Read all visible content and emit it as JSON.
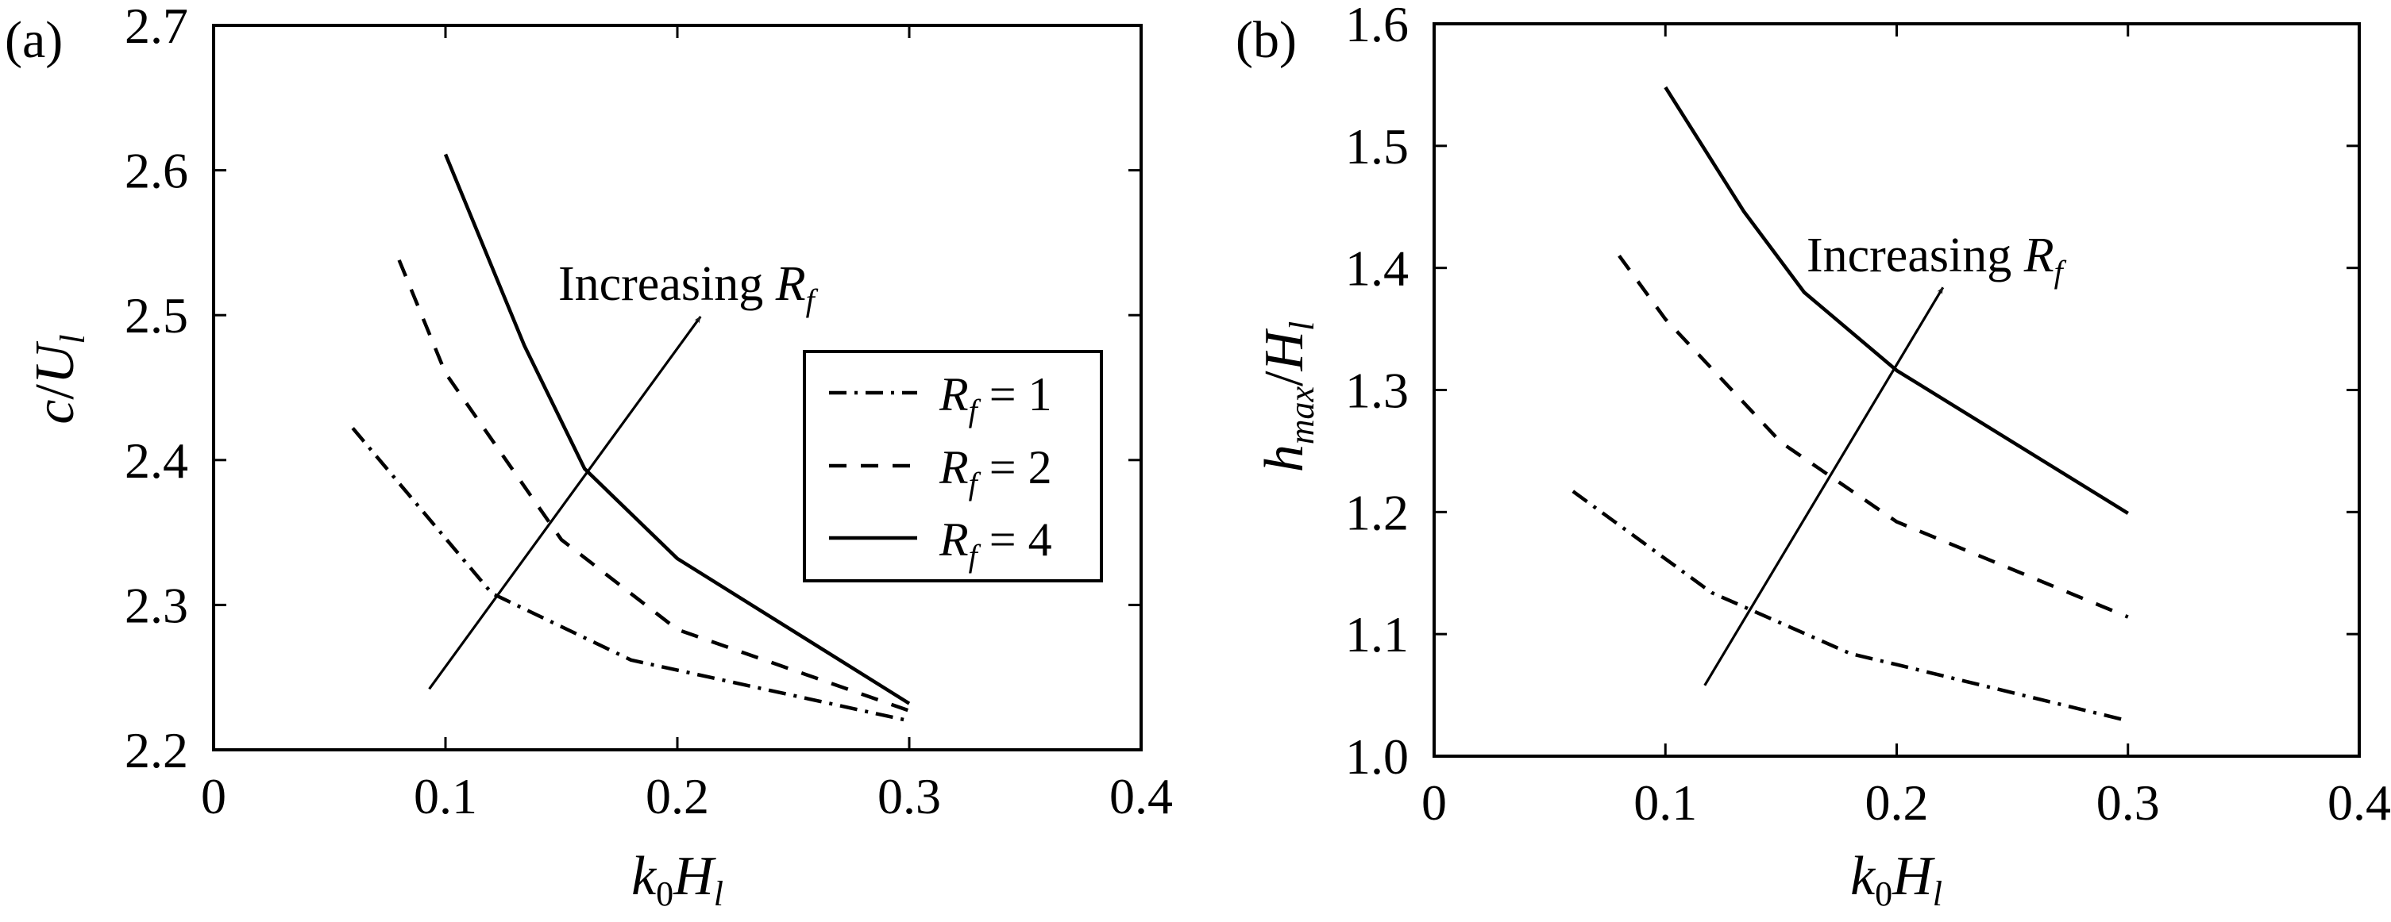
{
  "figure": {
    "panels": [
      {
        "label": "(a)",
        "ylabel_main": "c",
        "ylabel_slash": "/",
        "ylabel_U": "U",
        "ylabel_sub": "l",
        "xlabel_k": "k",
        "xlabel_k_sub": "0",
        "xlabel_H": "H",
        "xlabel_H_sub": "l",
        "annotation": "Increasing ",
        "annotation_R": "R",
        "annotation_sub": "f"
      },
      {
        "label": "(b)",
        "ylabel_main": "h",
        "ylabel_main_sub": "max",
        "ylabel_slash": "/",
        "ylabel_U": "H",
        "ylabel_sub": "l",
        "xlabel_k": "k",
        "xlabel_k_sub": "0",
        "xlabel_H": "H",
        "xlabel_H_sub": "l",
        "annotation": "Increasing ",
        "annotation_R": "R",
        "annotation_sub": "f"
      }
    ],
    "legend": [
      {
        "R": "R",
        "sub": "f",
        "eq": " = ",
        "value": "1",
        "style": "dashdot"
      },
      {
        "R": "R",
        "sub": "f",
        "eq": " = ",
        "value": "2",
        "style": "dashed"
      },
      {
        "R": "R",
        "sub": "f",
        "eq": " = ",
        "value": "4",
        "style": "solid"
      }
    ]
  },
  "chart_data": [
    {
      "type": "line",
      "title": "(a)",
      "xlabel": "k0 Hl",
      "ylabel": "c/Ul",
      "xlim": [
        0,
        0.4
      ],
      "ylim": [
        2.2,
        2.7
      ],
      "xticks": [
        "0",
        "0.1",
        "0.2",
        "0.3",
        "0.4"
      ],
      "yticks": [
        "2.2",
        "2.3",
        "2.4",
        "2.5",
        "2.6",
        "2.7"
      ],
      "grid": false,
      "legend_position": "center-right (inside)",
      "series": [
        {
          "name": "R_f = 1",
          "style": "dashdot",
          "x": [
            0.06,
            0.12,
            0.18,
            0.2,
            0.3
          ],
          "y": [
            2.422,
            2.308,
            2.262,
            2.255,
            2.22
          ]
        },
        {
          "name": "R_f = 2",
          "style": "dashed",
          "x": [
            0.08,
            0.1,
            0.15,
            0.2,
            0.3
          ],
          "y": [
            2.538,
            2.46,
            2.345,
            2.283,
            2.227
          ]
        },
        {
          "name": "R_f = 4",
          "style": "solid",
          "x": [
            0.1,
            0.134,
            0.16,
            0.2,
            0.3
          ],
          "y": [
            2.611,
            2.479,
            2.394,
            2.332,
            2.232
          ]
        }
      ],
      "annotations": [
        {
          "text": "Increasing R_f",
          "x": 0.149,
          "y": 2.52
        },
        {
          "type": "arrow",
          "from": [
            0.093,
            2.242
          ],
          "to": [
            0.21,
            2.499
          ]
        }
      ]
    },
    {
      "type": "line",
      "title": "(b)",
      "xlabel": "k0 Hl",
      "ylabel": "hmax/Hl",
      "xlim": [
        0,
        0.4
      ],
      "ylim": [
        1.0,
        1.6
      ],
      "xticks": [
        "0",
        "0.1",
        "0.2",
        "0.3",
        "0.4"
      ],
      "yticks": [
        "1.0",
        "1.1",
        "1.2",
        "1.3",
        "1.4",
        "1.5",
        "1.6"
      ],
      "grid": false,
      "series": [
        {
          "name": "R_f = 1",
          "style": "dashdot",
          "x": [
            0.06,
            0.12,
            0.18,
            0.2,
            0.3
          ],
          "y": [
            1.217,
            1.134,
            1.084,
            1.075,
            1.029
          ]
        },
        {
          "name": "R_f = 2",
          "style": "dashed",
          "x": [
            0.08,
            0.1,
            0.15,
            0.2,
            0.3
          ],
          "y": [
            1.41,
            1.358,
            1.257,
            1.192,
            1.114
          ]
        },
        {
          "name": "R_f = 4",
          "style": "solid",
          "x": [
            0.1,
            0.134,
            0.16,
            0.2,
            0.3
          ],
          "y": [
            1.548,
            1.446,
            1.38,
            1.316,
            1.199
          ]
        }
      ],
      "annotations": [
        {
          "text": "Increasing R_f",
          "x": 0.161,
          "y": 1.395
        },
        {
          "type": "arrow",
          "from": [
            0.117,
            1.058
          ],
          "to": [
            0.22,
            1.384
          ]
        }
      ]
    }
  ]
}
